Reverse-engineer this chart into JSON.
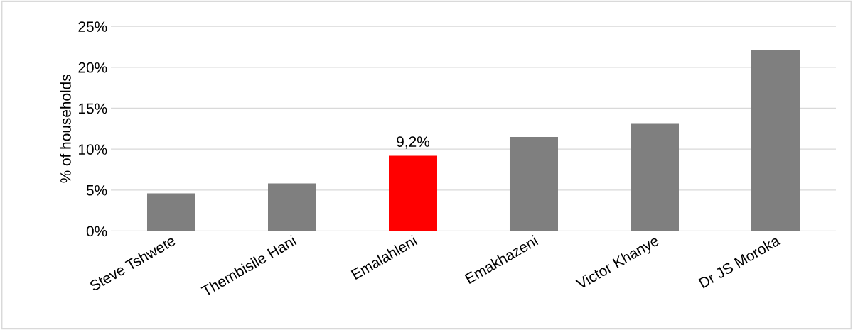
{
  "chart_data": {
    "type": "bar",
    "ylabel": "% of households",
    "categories": [
      "Steve Tshwete",
      "Thembisile Hani",
      "Emalahleni",
      "Emakhazeni",
      "Victor Khanye",
      "Dr JS Moroka"
    ],
    "values": [
      4.6,
      5.8,
      9.2,
      11.5,
      13.1,
      22.1
    ],
    "colors": [
      "#7f7f7f",
      "#7f7f7f",
      "#ff0000",
      "#7f7f7f",
      "#7f7f7f",
      "#7f7f7f"
    ],
    "value_labels": [
      null,
      null,
      "9,2%",
      null,
      null,
      null
    ],
    "ylim": [
      0,
      25
    ],
    "yticks": [
      {
        "value": 0,
        "label": "0%"
      },
      {
        "value": 5,
        "label": "5%"
      },
      {
        "value": 10,
        "label": "10%"
      },
      {
        "value": 15,
        "label": "15%"
      },
      {
        "value": 20,
        "label": "20%"
      },
      {
        "value": 25,
        "label": "25%"
      }
    ],
    "grid": "y",
    "legend": false
  }
}
